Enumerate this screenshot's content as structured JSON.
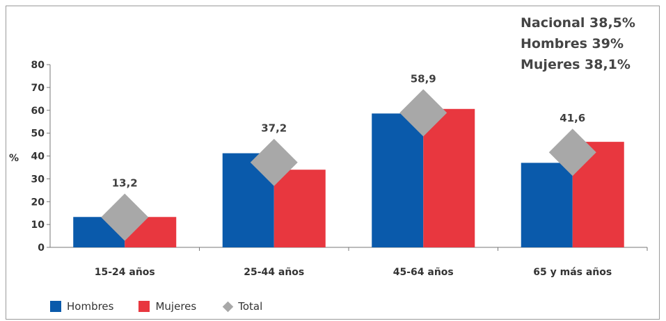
{
  "summary": {
    "line1": "Nacional 38,5%",
    "line2": "Hombres 39%",
    "line3": "Mujeres 38,1%"
  },
  "colors": {
    "hombres": "#0a5aab",
    "mujeres": "#e8373f",
    "total": "#a8a8a8"
  },
  "chart_data": {
    "type": "bar",
    "ylabel": "%",
    "ylim": [
      0,
      80
    ],
    "yticks": [
      "0",
      "10",
      "20",
      "30",
      "40",
      "50",
      "60",
      "70",
      "80"
    ],
    "categories": [
      "15-24 años",
      "25-44 años",
      "45-64 años",
      "65 y más años"
    ],
    "series": [
      {
        "name": "Hombres",
        "values": [
          13.3,
          41.2,
          58.6,
          37.0
        ]
      },
      {
        "name": "Mujeres",
        "values": [
          13.3,
          34.0,
          60.6,
          46.2
        ]
      },
      {
        "name": "Total",
        "values": [
          13.2,
          37.2,
          58.9,
          41.6
        ],
        "marker": "diamond"
      }
    ],
    "data_labels": [
      "13,2",
      "37,2",
      "58,9",
      "41,6"
    ],
    "legend": "bottom-left",
    "grid": false
  }
}
